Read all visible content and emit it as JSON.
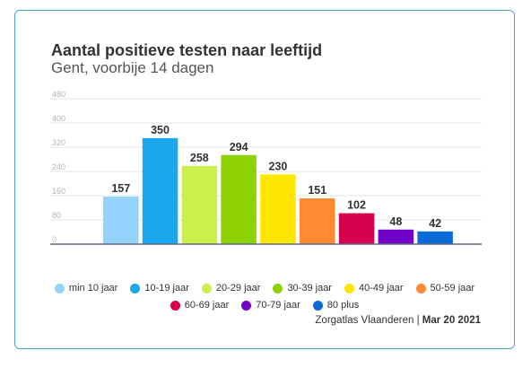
{
  "chart_data": {
    "type": "bar",
    "title": "Aantal positieve testen naar leeftijd",
    "subtitle": "Gent, voorbije 14 dagen",
    "categories": [
      "min 10 jaar",
      "10-19 jaar",
      "20-29 jaar",
      "30-39 jaar",
      "40-49 jaar",
      "50-59 jaar",
      "60-69 jaar",
      "70-79 jaar",
      "80 plus"
    ],
    "values": [
      157,
      350,
      258,
      294,
      230,
      151,
      102,
      48,
      42
    ],
    "colors": [
      "#93d3fb",
      "#1aa7ee",
      "#ccf04a",
      "#8ed100",
      "#ffe600",
      "#ff8a33",
      "#d6004f",
      "#7100c8",
      "#0b6bd6"
    ],
    "yticks": [
      0,
      80,
      160,
      240,
      320,
      400,
      480
    ],
    "ylim": [
      0,
      480
    ],
    "grid": true,
    "legend_position": "bottom"
  },
  "source": {
    "label": "Zorgatlas Vlaanderen",
    "separator": "|",
    "date": "Mar 20 2021"
  }
}
